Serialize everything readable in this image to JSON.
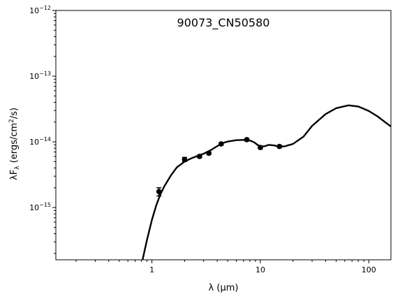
{
  "chart_data": {
    "type": "scatter",
    "title": "90073_CN50580",
    "xlabel": "λ (μm)",
    "ylabel_parts": {
      "lead": "λF",
      "sub": "λ",
      "mid": " (ergs/cm",
      "sup": "2",
      "tail": "/s)"
    },
    "x_scale": "log",
    "y_scale": "log",
    "xlim": [
      0.13,
      160
    ],
    "ylim": [
      1.6e-16,
      1e-12
    ],
    "x_ticks": [
      {
        "value": 1,
        "label": "1"
      },
      {
        "value": 10,
        "label": "10"
      },
      {
        "value": 100,
        "label": "100"
      }
    ],
    "y_ticks": [
      {
        "value": 1e-15,
        "base": "10",
        "exp": "−15"
      },
      {
        "value": 1e-14,
        "base": "10",
        "exp": "−14"
      },
      {
        "value": 1e-13,
        "base": "10",
        "exp": "−13"
      },
      {
        "value": 1e-12,
        "base": "10",
        "exp": "−12"
      }
    ],
    "grid": false,
    "points": [
      {
        "x": 1.16,
        "y": 1.75e-15,
        "yerr_low": 1.5e-15,
        "yerr_high": 2e-15
      },
      {
        "x": 2.0,
        "y": 5.4e-15,
        "yerr_low": 5e-15,
        "yerr_high": 5.8e-15
      },
      {
        "x": 2.75,
        "y": 6e-15,
        "yerr_low": 5.7e-15,
        "yerr_high": 6.3e-15
      },
      {
        "x": 3.35,
        "y": 6.7e-15,
        "yerr_low": 6.4e-15,
        "yerr_high": 7e-15
      },
      {
        "x": 4.35,
        "y": 9.3e-15,
        "yerr_low": 8.9e-15,
        "yerr_high": 9.7e-15
      },
      {
        "x": 7.5,
        "y": 1.08e-14,
        "yerr_low": 1.03e-14,
        "yerr_high": 1.13e-14
      },
      {
        "x": 10.0,
        "y": 8.2e-15,
        "yerr_low": 7.8e-15,
        "yerr_high": 8.6e-15
      },
      {
        "x": 15.0,
        "y": 8.5e-15,
        "yerr_low": 8.1e-15,
        "yerr_high": 8.9e-15
      }
    ],
    "model_curve": {
      "x": [
        0.82,
        0.9,
        1.0,
        1.1,
        1.2,
        1.3,
        1.5,
        1.7,
        2.0,
        2.3,
        2.7,
        3.0,
        3.5,
        4.0,
        4.5,
        5.0,
        6.0,
        7.0,
        8.0,
        8.8,
        9.5,
        10.2,
        11.0,
        12.0,
        13.5,
        15.0,
        17.0,
        20.0,
        25.0,
        30.0,
        40.0,
        50.0,
        65.0,
        80.0,
        100.0,
        120.0,
        150.0,
        160.0
      ],
      "y": [
        1.6e-16,
        3.2e-16,
        6.5e-16,
        1.1e-15,
        1.6e-15,
        2.1e-15,
        3.1e-15,
        4.1e-15,
        5e-15,
        5.6e-15,
        6.2e-15,
        6.6e-15,
        7.5e-15,
        8.6e-15,
        9.6e-15,
        1.01e-14,
        1.06e-14,
        1.07e-14,
        1.05e-14,
        9.8e-15,
        8.9e-15,
        8.5e-15,
        8.6e-15,
        9e-15,
        8.8e-15,
        8.4e-15,
        8.6e-15,
        9.3e-15,
        1.2e-14,
        1.75e-14,
        2.65e-14,
        3.25e-14,
        3.6e-14,
        3.45e-14,
        2.95e-14,
        2.45e-14,
        1.85e-14,
        1.72e-14
      ]
    }
  }
}
